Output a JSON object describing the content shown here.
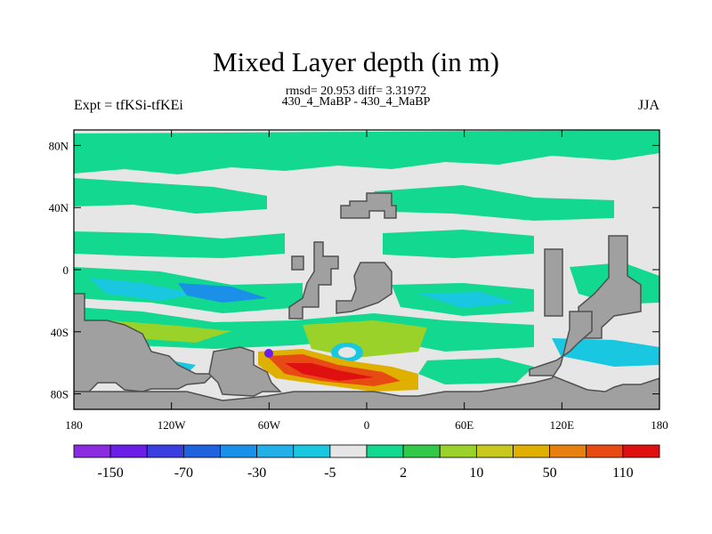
{
  "title": "Mixed Layer depth (in m)",
  "stats_line": "rmsd= 20.953  diff= 3.31972",
  "case_line": "430_4_MaBP - 430_4_MaBP",
  "left_title": "Expt = tfKSi-tfKEi",
  "right_title": "JJA",
  "lat_labels": [
    "80N",
    "40N",
    "0",
    "40S",
    "80S"
  ],
  "lat_values": [
    80,
    40,
    0,
    -40,
    -80
  ],
  "lon_labels": [
    "180",
    "120W",
    "60W",
    "0",
    "60E",
    "120E",
    "180"
  ],
  "lon_values": [
    -180,
    -120,
    -60,
    0,
    60,
    120,
    180
  ],
  "colorbar_levels": [
    "-150",
    "-70",
    "-30",
    "-5",
    "2",
    "10",
    "50",
    "110"
  ],
  "colorbar_colors": [
    "#8a2be2",
    "#6a1ee8",
    "#3a3de0",
    "#1f62e0",
    "#1a90e8",
    "#22b0e8",
    "#19c8e0",
    "#e6e6e6",
    "#12d890",
    "#34c848",
    "#9ad22a",
    "#c8c81e",
    "#e0b000",
    "#e88010",
    "#e84a14",
    "#e01010"
  ],
  "land_color": "#a0a0a0"
}
